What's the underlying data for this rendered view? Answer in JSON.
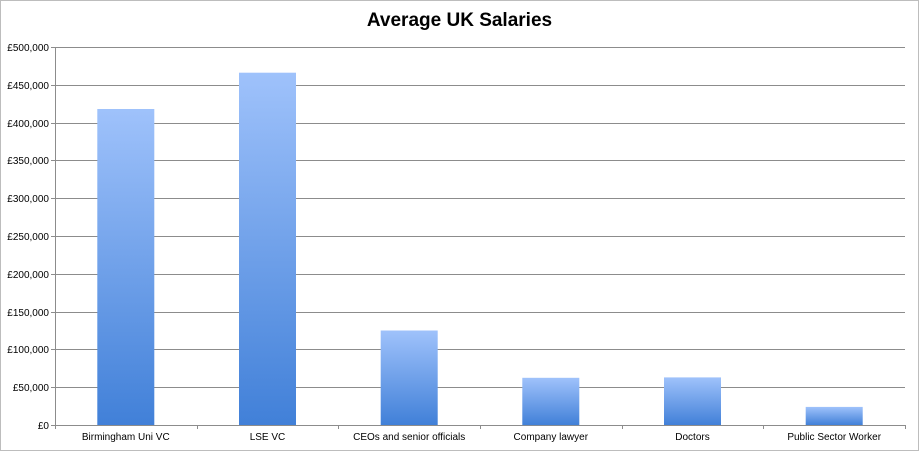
{
  "chart_data": {
    "type": "bar",
    "title": "Average UK Salaries",
    "xlabel": "",
    "ylabel": "",
    "categories": [
      "Birmingham Uni VC",
      "LSE VC",
      "CEOs and senior officials",
      "Company lawyer",
      "Doctors",
      "Public Sector Worker"
    ],
    "values": [
      418000,
      466000,
      125000,
      62500,
      63000,
      24000
    ],
    "ylim": [
      0,
      500000
    ],
    "y_ticks": [
      0,
      50000,
      100000,
      150000,
      200000,
      250000,
      300000,
      350000,
      400000,
      450000,
      500000
    ],
    "y_tick_labels": [
      "£0",
      "£50,000",
      "£100,000",
      "£150,000",
      "£200,000",
      "£250,000",
      "£300,000",
      "£350,000",
      "£400,000",
      "£450,000",
      "£500,000"
    ],
    "grid": true,
    "legend": "none",
    "colors": {
      "bar_top": "#9fc2fb",
      "bar_bottom": "#4180d8",
      "grid": "#8c8c8c",
      "axis": "#8c8c8c"
    }
  }
}
